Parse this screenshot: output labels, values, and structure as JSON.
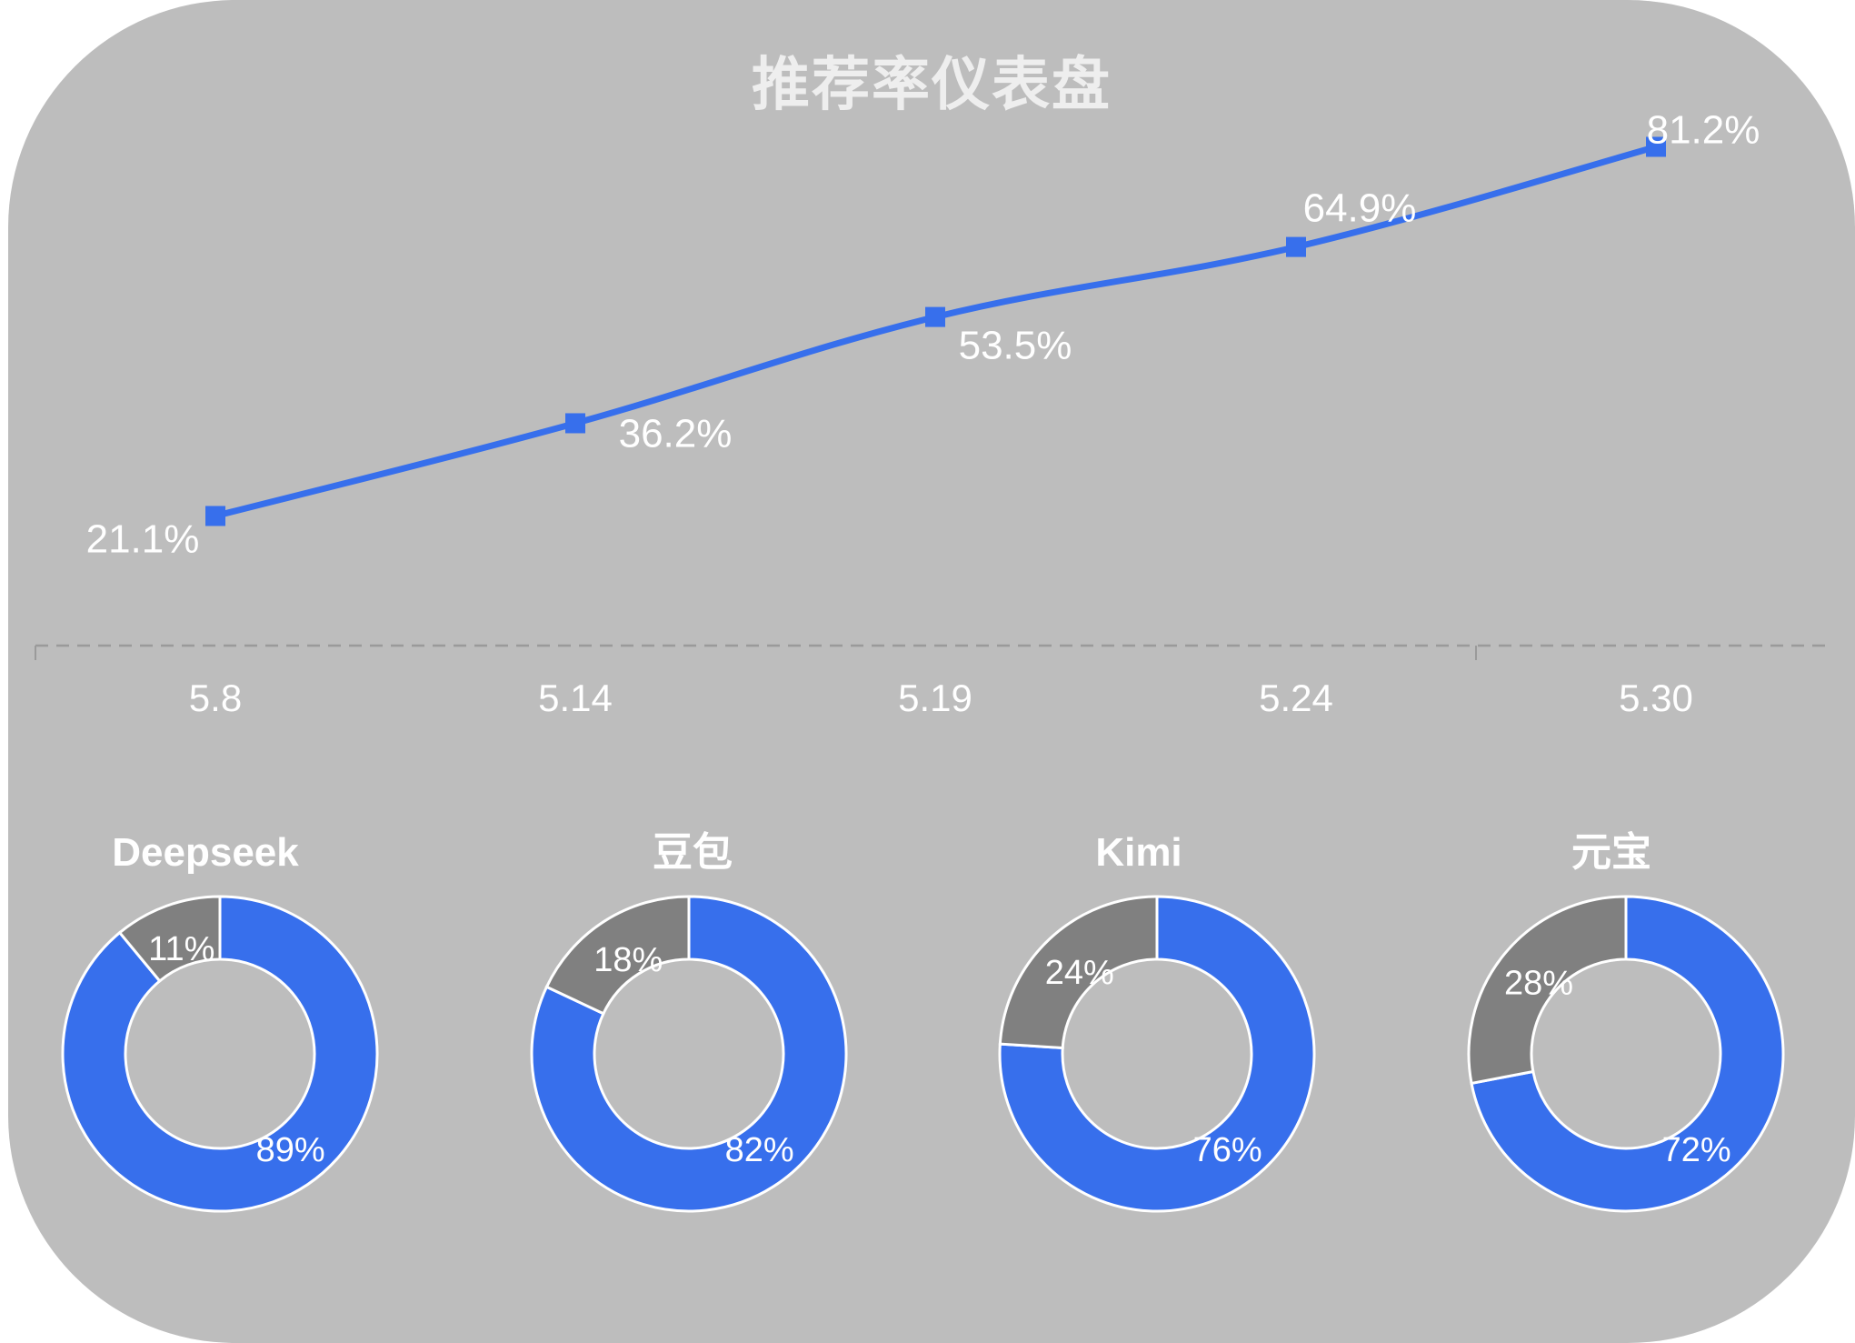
{
  "title": "推荐率仪表盘",
  "colors": {
    "background": "#bdbdbd",
    "line": "#376fec",
    "positive": "#376fec",
    "negative": "#808080",
    "text": "#ffffff"
  },
  "chart_data": [
    {
      "type": "line",
      "title": "推荐率仪表盘",
      "categories": [
        "5.8",
        "5.14",
        "5.19",
        "5.24",
        "5.30"
      ],
      "values": [
        21.1,
        36.2,
        53.5,
        64.9,
        81.2
      ],
      "labels": [
        "21.1%",
        "36.2%",
        "53.5%",
        "64.9%",
        "81.2%"
      ],
      "unit": "%",
      "ylim": [
        0,
        100
      ],
      "smooth": true,
      "marker": "square",
      "grid": false
    },
    {
      "type": "pie",
      "donut": true,
      "charts": [
        {
          "name": "Deepseek",
          "values": [
            89,
            11
          ],
          "labels": [
            "89%",
            "11%"
          ]
        },
        {
          "name": "豆包",
          "values": [
            82,
            18
          ],
          "labels": [
            "82%",
            "18%"
          ]
        },
        {
          "name": "Kimi",
          "values": [
            76,
            24
          ],
          "labels": [
            "76%",
            "24%"
          ]
        },
        {
          "name": "元宝",
          "values": [
            72,
            28
          ],
          "labels": [
            "72%",
            "28%"
          ]
        }
      ]
    }
  ]
}
